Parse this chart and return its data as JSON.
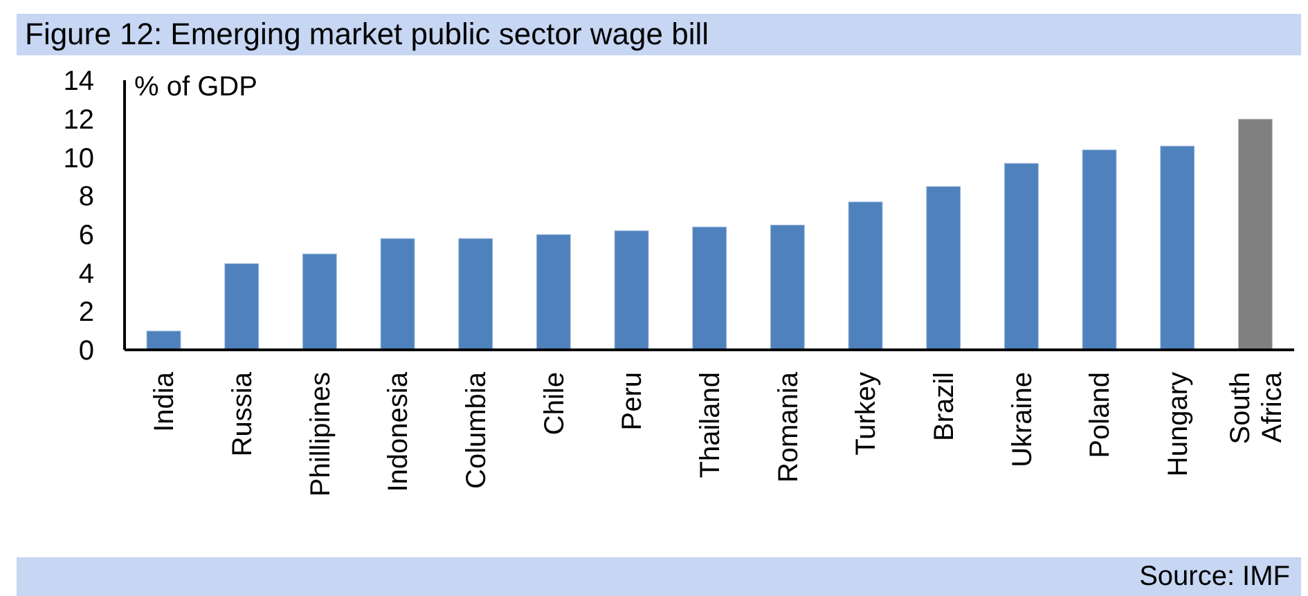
{
  "chart_data": {
    "type": "bar",
    "title": "Figure 12: Emerging market public sector wage bill",
    "ylabel": "% of GDP",
    "categories": [
      "India",
      "Russia",
      "Phillipines",
      "Indonesia",
      "Columbia",
      "Chile",
      "Peru",
      "Thailand",
      "Romania",
      "Turkey",
      "Brazil",
      "Ukraine",
      "Poland",
      "Hungary",
      "South Africa"
    ],
    "values": [
      1.0,
      4.5,
      5.0,
      5.8,
      5.8,
      6.0,
      6.2,
      6.4,
      6.5,
      7.7,
      8.5,
      9.7,
      10.4,
      10.6,
      12.0
    ],
    "colors": [
      "#4f81bd",
      "#4f81bd",
      "#4f81bd",
      "#4f81bd",
      "#4f81bd",
      "#4f81bd",
      "#4f81bd",
      "#4f81bd",
      "#4f81bd",
      "#4f81bd",
      "#4f81bd",
      "#4f81bd",
      "#4f81bd",
      "#4f81bd",
      "#808080"
    ],
    "ylim": [
      0,
      14
    ],
    "yticks": [
      0,
      2,
      4,
      6,
      8,
      10,
      12,
      14
    ],
    "grid": false,
    "legend": false,
    "annotations": [
      "Source: IMF"
    ]
  }
}
